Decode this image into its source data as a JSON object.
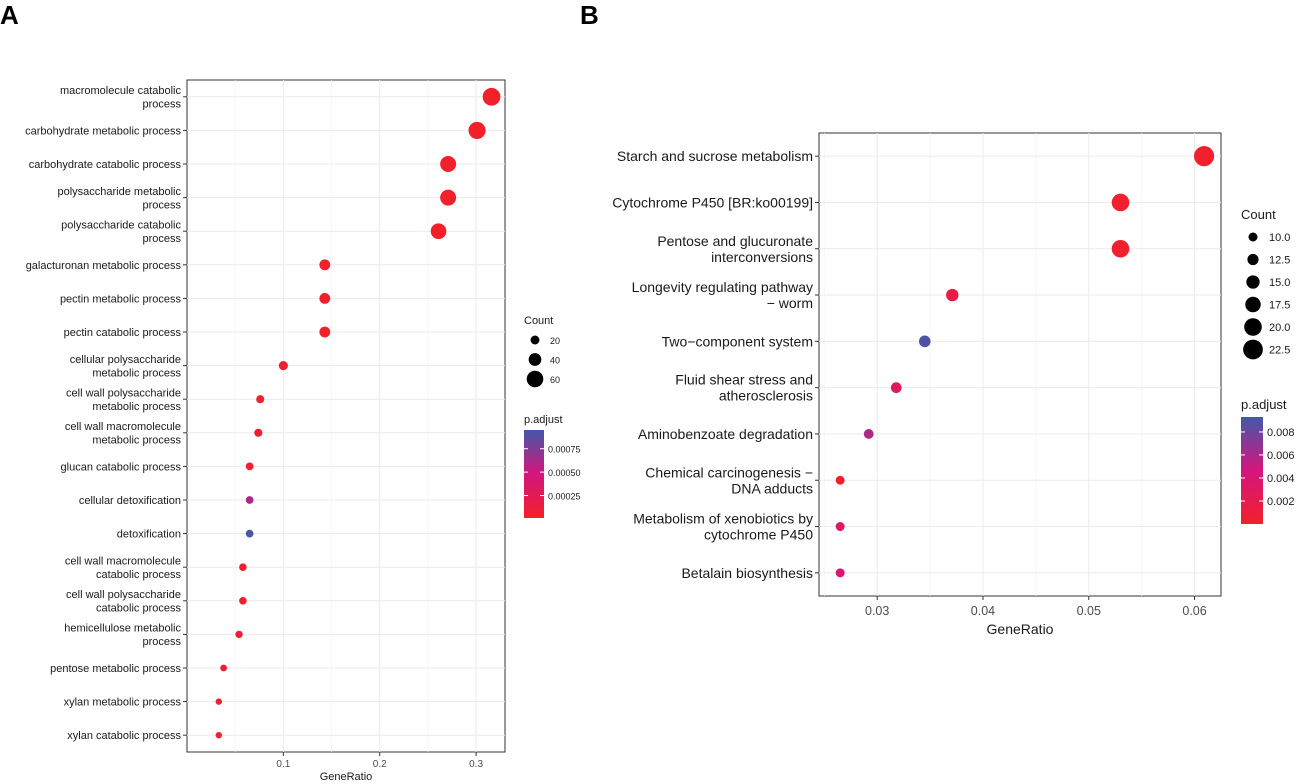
{
  "figure": {
    "panel_labels": [
      "A",
      "B"
    ]
  },
  "chart_data": [
    {
      "panel": "A",
      "type": "scatter",
      "subtype": "dot-plot",
      "xlabel": "GeneRatio",
      "ylabel": "",
      "xlim": [
        0.0,
        0.33
      ],
      "xticks": [
        0.1,
        0.2,
        0.3
      ],
      "xtick_labels": [
        "0.1",
        "0.2",
        "0.3"
      ],
      "grid": true,
      "size_legend": {
        "title": "Count",
        "values": [
          20,
          40,
          60
        ],
        "labels": [
          "20",
          "40",
          "60"
        ]
      },
      "color_legend": {
        "title": "p.adjust",
        "range": [
          1e-05,
          0.00095
        ],
        "ticks": [
          0.00025,
          0.0005,
          0.00075
        ],
        "tick_labels": [
          "0.00025",
          "0.00050",
          "0.00075"
        ],
        "low_color": "#f2202a",
        "high_color": "#4358a8"
      },
      "points": [
        {
          "term": [
            "macromolecule catabolic",
            "process"
          ],
          "gene_ratio": 0.316,
          "count": 66,
          "p_adjust": 1e-05
        },
        {
          "term": [
            "carbohydrate metabolic process"
          ],
          "gene_ratio": 0.301,
          "count": 63,
          "p_adjust": 1e-05
        },
        {
          "term": [
            "carbohydrate catabolic process"
          ],
          "gene_ratio": 0.271,
          "count": 57,
          "p_adjust": 1e-05
        },
        {
          "term": [
            "polysaccharide metabolic",
            "process"
          ],
          "gene_ratio": 0.271,
          "count": 57,
          "p_adjust": 1e-05
        },
        {
          "term": [
            "polysaccharide catabolic",
            "process"
          ],
          "gene_ratio": 0.261,
          "count": 55,
          "p_adjust": 1e-05
        },
        {
          "term": [
            "galacturonan metabolic process"
          ],
          "gene_ratio": 0.143,
          "count": 30,
          "p_adjust": 1e-05
        },
        {
          "term": [
            "pectin metabolic process"
          ],
          "gene_ratio": 0.143,
          "count": 30,
          "p_adjust": 1e-05
        },
        {
          "term": [
            "pectin catabolic process"
          ],
          "gene_ratio": 0.143,
          "count": 30,
          "p_adjust": 1e-05
        },
        {
          "term": [
            "cellular polysaccharide",
            "metabolic process"
          ],
          "gene_ratio": 0.1,
          "count": 21,
          "p_adjust": 5e-05
        },
        {
          "term": [
            "cell wall polysaccharide",
            "metabolic process"
          ],
          "gene_ratio": 0.076,
          "count": 16,
          "p_adjust": 3e-05
        },
        {
          "term": [
            "cell wall macromolecule",
            "metabolic process"
          ],
          "gene_ratio": 0.074,
          "count": 16,
          "p_adjust": 5e-05
        },
        {
          "term": [
            "glucan catabolic process"
          ],
          "gene_ratio": 0.065,
          "count": 14,
          "p_adjust": 3e-05
        },
        {
          "term": [
            "cellular detoxification"
          ],
          "gene_ratio": 0.065,
          "count": 14,
          "p_adjust": 0.0006
        },
        {
          "term": [
            "detoxification"
          ],
          "gene_ratio": 0.065,
          "count": 14,
          "p_adjust": 0.00093
        },
        {
          "term": [
            "cell wall macromolecule",
            "catabolic process"
          ],
          "gene_ratio": 0.058,
          "count": 13,
          "p_adjust": 4e-05
        },
        {
          "term": [
            "cell wall polysaccharide",
            "catabolic process"
          ],
          "gene_ratio": 0.058,
          "count": 13,
          "p_adjust": 4e-05
        },
        {
          "term": [
            "hemicellulose metabolic",
            "process"
          ],
          "gene_ratio": 0.054,
          "count": 12,
          "p_adjust": 8e-05
        },
        {
          "term": [
            "pentose metabolic process"
          ],
          "gene_ratio": 0.038,
          "count": 9,
          "p_adjust": 8e-05
        },
        {
          "term": [
            "xylan metabolic process"
          ],
          "gene_ratio": 0.033,
          "count": 7,
          "p_adjust": 2e-05
        },
        {
          "term": [
            "xylan catabolic process"
          ],
          "gene_ratio": 0.033,
          "count": 7,
          "p_adjust": 2e-05
        }
      ]
    },
    {
      "panel": "B",
      "type": "scatter",
      "subtype": "dot-plot",
      "xlabel": "GeneRatio",
      "ylabel": "",
      "xlim": [
        0.0245,
        0.0625
      ],
      "xticks": [
        0.03,
        0.04,
        0.05,
        0.06
      ],
      "xtick_labels": [
        "0.03",
        "0.04",
        "0.05",
        "0.06"
      ],
      "grid": true,
      "size_legend": {
        "title": "Count",
        "values": [
          10.0,
          12.5,
          15.0,
          17.5,
          20.0,
          22.5
        ],
        "labels": [
          "10.0",
          "12.5",
          "15.0",
          "17.5",
          "20.0",
          "22.5"
        ]
      },
      "color_legend": {
        "title": "p.adjust",
        "range": [
          0.0,
          0.0093
        ],
        "ticks": [
          0.002,
          0.004,
          0.006,
          0.008
        ],
        "tick_labels": [
          "0.002",
          "0.004",
          "0.006",
          "0.008"
        ],
        "low_color": "#f2202a",
        "high_color": "#4358a8"
      },
      "points": [
        {
          "term": [
            "Starch and sucrose metabolism"
          ],
          "gene_ratio": 0.0609,
          "count": 23,
          "p_adjust": 5e-05
        },
        {
          "term": [
            "Cytochrome P450 [BR:ko00199]"
          ],
          "gene_ratio": 0.053,
          "count": 20,
          "p_adjust": 0.0002
        },
        {
          "term": [
            "Pentose and glucuronate",
            "interconversions"
          ],
          "gene_ratio": 0.053,
          "count": 20,
          "p_adjust": 0.0002
        },
        {
          "term": [
            "Longevity regulating pathway",
            "− worm"
          ],
          "gene_ratio": 0.0371,
          "count": 14,
          "p_adjust": 0.0015
        },
        {
          "term": [
            "Two−component system"
          ],
          "gene_ratio": 0.0345,
          "count": 13,
          "p_adjust": 0.0089
        },
        {
          "term": [
            "Fluid shear stress and",
            "atherosclerosis"
          ],
          "gene_ratio": 0.0318,
          "count": 12,
          "p_adjust": 0.003
        },
        {
          "term": [
            "Aminobenzoate degradation"
          ],
          "gene_ratio": 0.0292,
          "count": 11,
          "p_adjust": 0.0058
        },
        {
          "term": [
            "Chemical carcinogenesis −",
            "DNA adducts"
          ],
          "gene_ratio": 0.0265,
          "count": 10,
          "p_adjust": 0.0002
        },
        {
          "term": [
            "Metabolism of xenobiotics by",
            "cytochrome P450"
          ],
          "gene_ratio": 0.0265,
          "count": 10,
          "p_adjust": 0.0033
        },
        {
          "term": [
            "Betalain biosynthesis"
          ],
          "gene_ratio": 0.0265,
          "count": 10,
          "p_adjust": 0.004
        }
      ]
    }
  ]
}
